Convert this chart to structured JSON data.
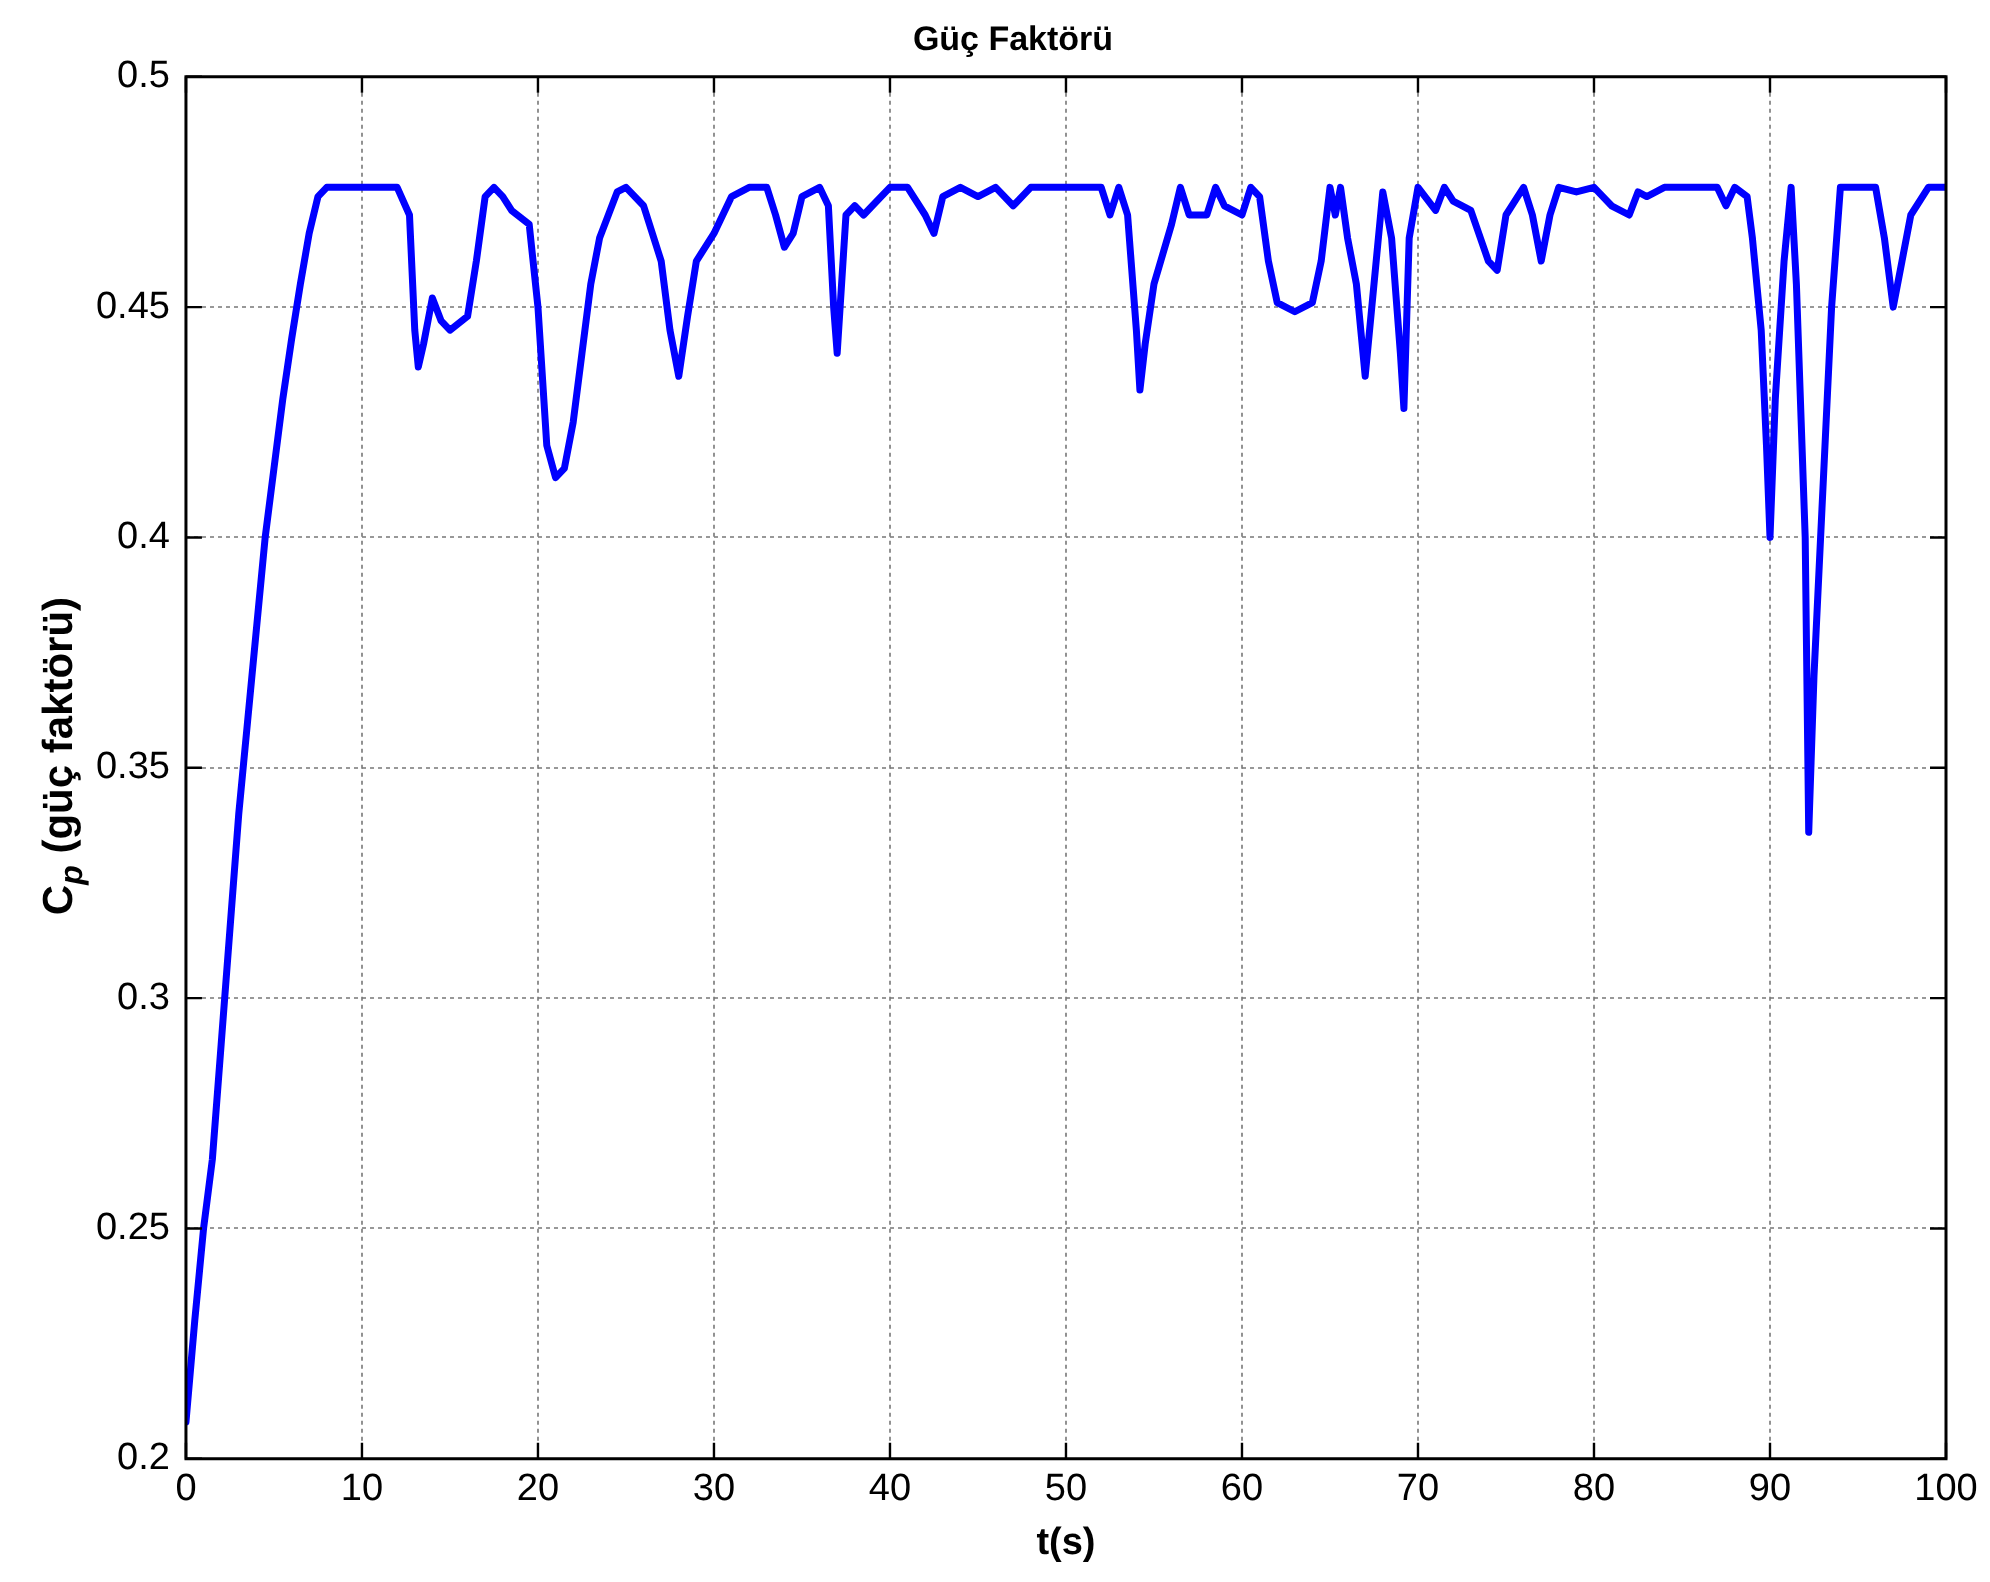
{
  "chart_data": {
    "type": "line",
    "title": "Güç Faktörü",
    "xlabel": "t(s)",
    "ylabel": "C$_{p}$  (güç faktörü)",
    "xlim": [
      0,
      100
    ],
    "xticks": [
      0,
      10,
      20,
      30,
      40,
      50,
      60,
      70,
      80,
      90,
      100
    ],
    "ylim": [
      0.2,
      0.5
    ],
    "yticks": [
      0.2,
      0.25,
      0.3,
      0.35,
      0.4,
      0.45,
      0.5
    ],
    "grid": true,
    "legend": false,
    "marker": "none",
    "line_style": "solid",
    "series": [
      {
        "color": "#0000ff",
        "x": [
          0,
          0.5,
          1,
          1.5,
          2,
          2.5,
          3,
          3.5,
          4,
          4.5,
          5,
          5.5,
          6,
          6.5,
          7,
          7.5,
          8,
          10,
          12,
          12.7,
          13,
          13.2,
          13.5,
          14,
          14.5,
          15,
          16,
          16.5,
          17,
          17.5,
          18,
          18.5,
          19.5,
          20,
          20.5,
          21,
          21.5,
          22,
          22.5,
          23,
          23.5,
          24,
          24.5,
          25,
          26,
          27,
          27.5,
          28,
          28.5,
          29,
          30,
          31,
          32,
          33,
          33.5,
          34,
          34.5,
          35,
          36,
          36.5,
          36.8,
          37,
          37.2,
          37.5,
          38,
          38.5,
          39,
          40,
          41,
          42,
          42.5,
          43,
          44,
          45,
          46,
          47,
          48,
          50,
          52,
          52.5,
          53,
          53.5,
          54,
          54.2,
          54.5,
          55,
          56,
          56.5,
          57,
          58,
          58.5,
          59,
          60,
          60.5,
          61,
          61.5,
          62,
          63,
          64,
          64.5,
          65,
          65.3,
          65.6,
          66,
          66.5,
          67,
          67.5,
          68,
          68.5,
          69,
          69.2,
          69.5,
          70,
          71,
          71.5,
          72,
          73,
          74,
          74.5,
          75,
          76,
          76.5,
          77,
          77.5,
          78,
          79,
          80,
          81,
          82,
          82.5,
          83,
          84,
          87,
          87.5,
          88,
          88.7,
          89,
          89.5,
          89.8,
          90,
          90.3,
          90.8,
          91.2,
          91.5,
          92,
          92.2,
          92.5,
          93,
          93.5,
          94,
          96,
          96.5,
          97,
          97.5,
          98,
          99,
          100
        ],
        "values": [
          0.208,
          0.23,
          0.25,
          0.265,
          0.29,
          0.315,
          0.34,
          0.36,
          0.38,
          0.4,
          0.415,
          0.43,
          0.443,
          0.455,
          0.466,
          0.474,
          0.476,
          0.476,
          0.476,
          0.47,
          0.445,
          0.437,
          0.442,
          0.452,
          0.447,
          0.445,
          0.448,
          0.46,
          0.474,
          0.476,
          0.474,
          0.471,
          0.468,
          0.45,
          0.42,
          0.413,
          0.415,
          0.425,
          0.44,
          0.455,
          0.465,
          0.47,
          0.475,
          0.476,
          0.472,
          0.46,
          0.445,
          0.435,
          0.448,
          0.46,
          0.466,
          0.474,
          0.476,
          0.476,
          0.47,
          0.463,
          0.466,
          0.474,
          0.476,
          0.472,
          0.45,
          0.44,
          0.452,
          0.47,
          0.472,
          0.47,
          0.472,
          0.476,
          0.476,
          0.47,
          0.466,
          0.474,
          0.476,
          0.474,
          0.476,
          0.472,
          0.476,
          0.476,
          0.476,
          0.47,
          0.476,
          0.47,
          0.445,
          0.432,
          0.442,
          0.455,
          0.468,
          0.476,
          0.47,
          0.47,
          0.476,
          0.472,
          0.47,
          0.476,
          0.474,
          0.46,
          0.451,
          0.449,
          0.451,
          0.46,
          0.476,
          0.47,
          0.476,
          0.465,
          0.455,
          0.435,
          0.455,
          0.475,
          0.465,
          0.44,
          0.428,
          0.465,
          0.476,
          0.471,
          0.476,
          0.473,
          0.471,
          0.46,
          0.458,
          0.47,
          0.476,
          0.47,
          0.46,
          0.47,
          0.476,
          0.475,
          0.476,
          0.472,
          0.47,
          0.475,
          0.474,
          0.476,
          0.476,
          0.472,
          0.476,
          0.474,
          0.465,
          0.445,
          0.42,
          0.4,
          0.43,
          0.46,
          0.476,
          0.455,
          0.4,
          0.336,
          0.37,
          0.41,
          0.45,
          0.476,
          0.476,
          0.465,
          0.45,
          0.46,
          0.47,
          0.476,
          0.476
        ]
      }
    ]
  }
}
